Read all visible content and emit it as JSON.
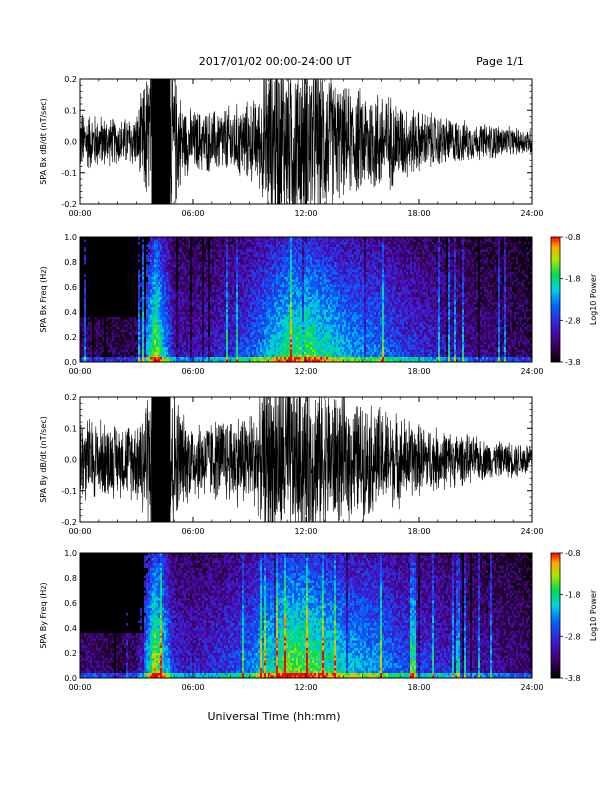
{
  "header": {
    "title": "2017/01/02  00:00-24:00 UT",
    "page": "Page 1/1"
  },
  "footer": {
    "xlabel": "Universal Time (hh:mm)"
  },
  "chart_data": [
    {
      "type": "line",
      "ylabel": "SPA Bx dB/dt (nT/sec)",
      "ylim": [
        -0.2,
        0.2
      ],
      "yticks": [
        "0.2",
        "0.1",
        "0.0",
        "-0.1",
        "-0.2"
      ],
      "xlim": [
        0,
        24
      ],
      "xticks": [
        "00:00",
        "06:00",
        "12:00",
        "18:00",
        "24:00"
      ],
      "series": [
        {
          "x": [
            0,
            1,
            2,
            3,
            3.8,
            4.2,
            4.8,
            5.5,
            6,
            7,
            8,
            9,
            9.5,
            10,
            11,
            12,
            13,
            14,
            15,
            16,
            17,
            18,
            19,
            20,
            21,
            22,
            23,
            24
          ],
          "amplitude": [
            0.07,
            0.06,
            0.05,
            0.06,
            0.2,
            0.2,
            0.2,
            0.08,
            0.07,
            0.07,
            0.08,
            0.09,
            0.1,
            0.2,
            0.2,
            0.2,
            0.17,
            0.12,
            0.12,
            0.12,
            0.09,
            0.07,
            0.06,
            0.05,
            0.04,
            0.04,
            0.03,
            0.03
          ]
        }
      ]
    },
    {
      "type": "heatmap",
      "ylabel": "SPA Bx Freq (Hz)",
      "ylim": [
        0,
        1.0
      ],
      "yticks": [
        "1.0",
        "0.8",
        "0.6",
        "0.4",
        "0.2",
        "0.0"
      ],
      "xlim": [
        0,
        24
      ],
      "xticks": [
        "00:00",
        "06:00",
        "12:00",
        "18:00",
        "24:00"
      ],
      "colorbar": {
        "label": "Log10 Power",
        "ticks": [
          "-0.8",
          "-1.8",
          "-2.8",
          "-3.8"
        ],
        "range": [
          -3.8,
          -0.8
        ]
      },
      "activity_profile": [
        0.15,
        0.12,
        0.1,
        0.12,
        0.9,
        0.3,
        0.25,
        0.3,
        0.35,
        0.45,
        0.6,
        0.75,
        0.8,
        0.7,
        0.6,
        0.55,
        0.5,
        0.4,
        0.35,
        0.3,
        0.25,
        0.2,
        0.18,
        0.15,
        0.12
      ]
    },
    {
      "type": "line",
      "ylabel": "SPA By dB/dt (nT/sec)",
      "ylim": [
        -0.2,
        0.2
      ],
      "yticks": [
        "0.2",
        "0.1",
        "0.0",
        "-0.1",
        "-0.2"
      ],
      "xlim": [
        0,
        24
      ],
      "xticks": [
        "00:00",
        "06:00",
        "12:00",
        "18:00",
        "24:00"
      ],
      "series": [
        {
          "x": [
            0,
            1,
            2,
            3,
            3.8,
            4.2,
            4.8,
            5.5,
            6,
            7,
            8,
            9,
            9.5,
            10,
            11,
            12,
            13,
            14,
            15,
            16,
            17,
            18,
            19,
            20,
            21,
            22,
            23,
            24
          ],
          "amplitude": [
            0.1,
            0.09,
            0.08,
            0.09,
            0.2,
            0.2,
            0.2,
            0.1,
            0.09,
            0.09,
            0.1,
            0.11,
            0.12,
            0.2,
            0.2,
            0.2,
            0.17,
            0.14,
            0.13,
            0.12,
            0.1,
            0.08,
            0.07,
            0.06,
            0.05,
            0.04,
            0.04,
            0.04
          ]
        }
      ]
    },
    {
      "type": "heatmap",
      "ylabel": "SPA By Freq (Hz)",
      "ylim": [
        0,
        1.0
      ],
      "yticks": [
        "1.0",
        "0.8",
        "0.6",
        "0.4",
        "0.2",
        "0.0"
      ],
      "xlim": [
        0,
        24
      ],
      "xticks": [
        "00:00",
        "06:00",
        "12:00",
        "18:00",
        "24:00"
      ],
      "colorbar": {
        "label": "Log10 Power",
        "ticks": [
          "-0.8",
          "-1.8",
          "-2.8",
          "-3.8"
        ],
        "range": [
          -3.8,
          -0.8
        ]
      },
      "activity_profile": [
        0.2,
        0.15,
        0.12,
        0.15,
        0.95,
        0.35,
        0.3,
        0.35,
        0.4,
        0.5,
        0.7,
        0.85,
        0.85,
        0.75,
        0.65,
        0.6,
        0.55,
        0.45,
        0.4,
        0.35,
        0.3,
        0.25,
        0.22,
        0.18,
        0.15
      ]
    }
  ]
}
